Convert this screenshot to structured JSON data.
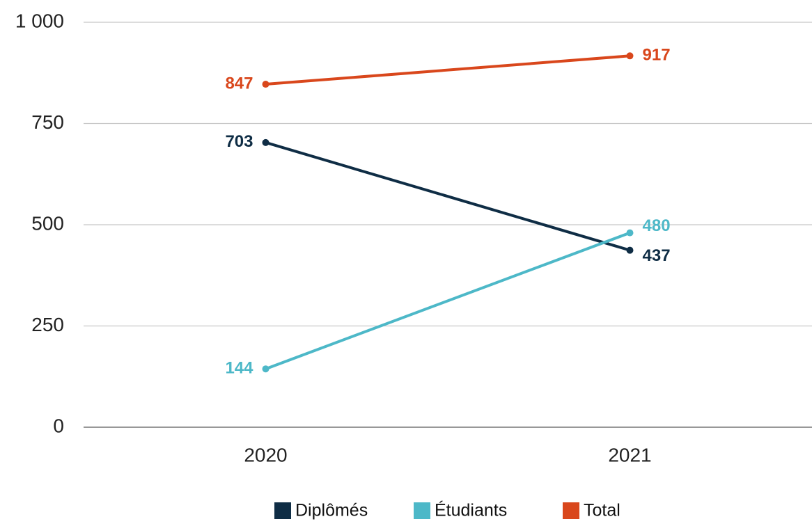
{
  "chart_data": {
    "type": "line",
    "categories": [
      "2020",
      "2021"
    ],
    "series": [
      {
        "name": "Diplômés",
        "color": "#0f2d45",
        "values": [
          703,
          437
        ]
      },
      {
        "name": "Étudiants",
        "color": "#4db8c8",
        "values": [
          144,
          480
        ]
      },
      {
        "name": "Total",
        "color": "#d9471c",
        "values": [
          847,
          917
        ]
      }
    ],
    "ylim": [
      0,
      1000
    ],
    "yticks": [
      0,
      250,
      500,
      750,
      {
        "value": 1000,
        "label": "1 000"
      }
    ],
    "grid": true,
    "legend": "bottom"
  }
}
